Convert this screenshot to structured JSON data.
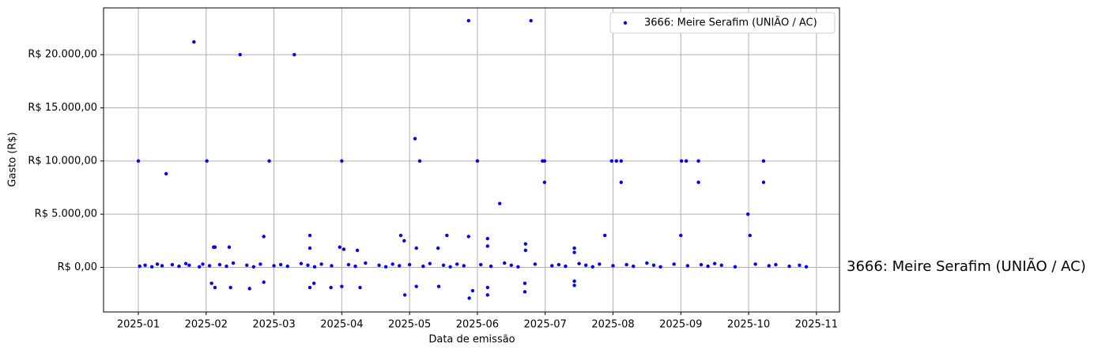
{
  "chart_data": {
    "type": "scatter",
    "xlabel": "Data de emissão",
    "ylabel": "Gasto (R$)",
    "annotation": "3666: Meire Serafim (UNIÃO / AC)",
    "xlim": [
      -0.513,
      10.34
    ],
    "ylim": [
      -4200,
      24400
    ],
    "xticks": [
      {
        "value": 0,
        "label": "2025-01"
      },
      {
        "value": 1,
        "label": "2025-02"
      },
      {
        "value": 2,
        "label": "2025-03"
      },
      {
        "value": 3,
        "label": "2025-04"
      },
      {
        "value": 4,
        "label": "2025-05"
      },
      {
        "value": 5,
        "label": "2025-06"
      },
      {
        "value": 6,
        "label": "2025-07"
      },
      {
        "value": 7,
        "label": "2025-08"
      },
      {
        "value": 8,
        "label": "2025-09"
      },
      {
        "value": 9,
        "label": "2025-10"
      },
      {
        "value": 10,
        "label": "2025-11"
      }
    ],
    "yticks": [
      {
        "value": 0,
        "label": "R$ 0,00"
      },
      {
        "value": 5000,
        "label": "R$ 5.000,00"
      },
      {
        "value": 10000,
        "label": "R$ 10.000,00"
      },
      {
        "value": 15000,
        "label": "R$ 15.000,00"
      },
      {
        "value": 20000,
        "label": "R$ 20.000,00"
      }
    ],
    "grid": true,
    "legend": "upper right",
    "series": [
      {
        "name": "3666: Meire Serafim (UNIÃO / AC)",
        "color": "blue",
        "x": [
          0,
          0.41,
          0.82,
          1.01,
          1.5,
          1.93,
          2.3,
          3.0,
          4.08,
          4.15,
          4.87,
          5.0,
          5.33,
          5.79,
          5.96,
          5.99,
          5.99,
          6.98,
          7.05,
          7.12,
          7.12,
          8.01,
          8.08,
          8.0,
          8.26,
          8.26,
          8.99,
          9.02,
          9.22,
          9.22,
          1.11,
          1.13,
          1.34,
          1.85,
          2.53,
          2.53,
          2.97,
          3.03,
          3.23,
          3.87,
          3.92,
          4.1,
          4.42,
          4.55,
          4.87,
          5.15,
          5.15,
          5.71,
          5.71,
          6.43,
          6.43,
          6.88,
          1.08,
          1.13,
          1.36,
          1.64,
          1.85,
          2.53,
          2.59,
          2.84,
          3.0,
          3.27,
          3.93,
          4.1,
          4.43,
          4.88,
          4.93,
          5.15,
          5.15,
          5.7,
          5.7,
          6.43,
          6.43,
          0.02,
          0.1,
          0.2,
          0.28,
          0.35,
          0.5,
          0.6,
          0.7,
          0.75,
          0.9,
          0.95,
          1.05,
          1.2,
          1.3,
          1.4,
          1.6,
          1.7,
          1.8,
          2.0,
          2.1,
          2.2,
          2.4,
          2.5,
          2.6,
          2.7,
          2.85,
          3.1,
          3.2,
          3.35,
          3.55,
          3.65,
          3.75,
          3.85,
          4.0,
          4.2,
          4.3,
          4.5,
          4.6,
          4.7,
          4.8,
          5.05,
          5.2,
          5.4,
          5.5,
          5.6,
          5.85,
          6.1,
          6.2,
          6.3,
          6.5,
          6.6,
          6.7,
          6.8,
          7.0,
          7.2,
          7.3,
          7.5,
          7.6,
          7.7,
          7.9,
          8.1,
          8.3,
          8.4,
          8.5,
          8.6,
          8.8,
          9.1,
          9.3,
          9.4,
          9.6,
          9.75,
          9.85
        ],
        "values": [
          10000,
          8800,
          21200,
          10000,
          20000,
          10000,
          20000,
          10000,
          12100,
          10000,
          23200,
          10000,
          6000,
          23200,
          10000,
          10000,
          8000,
          10000,
          10000,
          10000,
          8000,
          10000,
          10000,
          3000,
          10000,
          8000,
          5000,
          3000,
          10000,
          8000,
          1900,
          1900,
          1900,
          2900,
          3000,
          1800,
          1900,
          1700,
          1600,
          3000,
          2500,
          1800,
          1800,
          3000,
          2900,
          2700,
          2000,
          2200,
          1600,
          1800,
          1400,
          3000,
          -1500,
          -1900,
          -1900,
          -2000,
          -1400,
          -1900,
          -1500,
          -1900,
          -1800,
          -1900,
          -2600,
          -1800,
          -1800,
          -2900,
          -2200,
          -2600,
          -1900,
          -2300,
          -1500,
          -1700,
          -1300,
          100,
          200,
          50,
          300,
          150,
          250,
          100,
          350,
          200,
          50,
          300,
          150,
          250,
          100,
          400,
          200,
          50,
          300,
          150,
          250,
          100,
          350,
          200,
          50,
          300,
          150,
          250,
          100,
          400,
          200,
          50,
          300,
          150,
          250,
          100,
          350,
          200,
          50,
          300,
          150,
          250,
          100,
          400,
          200,
          50,
          300,
          150,
          250,
          100,
          350,
          200,
          50,
          300,
          150,
          250,
          100,
          400,
          200,
          50,
          300,
          150,
          250,
          100,
          350,
          200,
          50,
          300,
          150,
          250,
          100,
          200,
          50
        ]
      }
    ]
  }
}
